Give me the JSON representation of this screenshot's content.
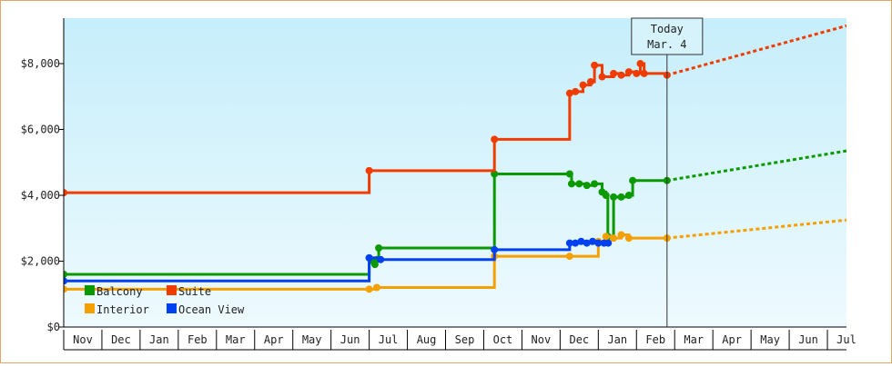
{
  "chart_data": {
    "type": "step-line",
    "xlim": [
      0,
      20.5
    ],
    "xticks": [
      {
        "value": 0.5,
        "label": "Nov"
      },
      {
        "value": 1.5,
        "label": "Dec"
      },
      {
        "value": 2.5,
        "label": "Jan"
      },
      {
        "value": 3.5,
        "label": "Feb"
      },
      {
        "value": 4.5,
        "label": "Mar"
      },
      {
        "value": 5.5,
        "label": "Apr"
      },
      {
        "value": 6.5,
        "label": "May"
      },
      {
        "value": 7.5,
        "label": "Jun"
      },
      {
        "value": 8.5,
        "label": "Jul"
      },
      {
        "value": 9.5,
        "label": "Aug"
      },
      {
        "value": 10.5,
        "label": "Sep"
      },
      {
        "value": 11.5,
        "label": "Oct"
      },
      {
        "value": 12.5,
        "label": "Nov"
      },
      {
        "value": 13.5,
        "label": "Dec"
      },
      {
        "value": 14.5,
        "label": "Jan"
      },
      {
        "value": 15.5,
        "label": "Feb"
      },
      {
        "value": 16.5,
        "label": "Mar"
      },
      {
        "value": 17.5,
        "label": "Apr"
      },
      {
        "value": 18.5,
        "label": "May"
      },
      {
        "value": 19.5,
        "label": "Jun"
      },
      {
        "value": 20.5,
        "label": "Jul"
      }
    ],
    "ylim": [
      0,
      9380
    ],
    "yticks": [
      {
        "value": 0,
        "label": "$0"
      },
      {
        "value": 2000,
        "label": "$2,000"
      },
      {
        "value": 4000,
        "label": "$4,000"
      },
      {
        "value": 6000,
        "label": "$6,000"
      },
      {
        "value": 8000,
        "label": "$8,000"
      }
    ],
    "today": {
      "x": 15.8,
      "label": "Today",
      "date": "Mar. 4"
    },
    "projection_x": [
      15.8,
      20.5
    ],
    "series": [
      {
        "name": "Balcony",
        "color": "#0a9a00",
        "x": [
          0,
          8.0,
          8.1,
          8.15,
          8.2,
          8.25,
          11.28,
          13.25,
          13.3,
          13.5,
          13.7,
          13.9,
          14.1,
          14.2,
          14.25,
          14.4,
          14.6,
          14.8,
          14.9,
          15.8
        ],
        "values": [
          1600,
          2100,
          2000,
          1900,
          2050,
          2400,
          4650,
          4650,
          4350,
          4350,
          4300,
          4350,
          4100,
          4000,
          2750,
          3950,
          3950,
          4000,
          4450,
          4450
        ],
        "projection": [
          4450,
          5350
        ]
      },
      {
        "name": "Suite",
        "color": "#f03c00",
        "x": [
          0,
          8.0,
          11.28,
          13.25,
          13.4,
          13.6,
          13.8,
          13.9,
          14.1,
          14.4,
          14.6,
          14.8,
          15.0,
          15.1,
          15.2,
          15.8
        ],
        "values": [
          4080,
          4750,
          5700,
          7100,
          7150,
          7350,
          7450,
          7950,
          7600,
          7700,
          7650,
          7750,
          7700,
          8000,
          7700,
          7650
        ],
        "projection": [
          7650,
          9150
        ]
      },
      {
        "name": "Interior",
        "color": "#f5a000",
        "x": [
          0,
          8.0,
          8.2,
          11.28,
          13.25,
          14.0,
          14.2,
          14.4,
          14.6,
          14.8,
          15.8
        ],
        "values": [
          1150,
          1150,
          1200,
          2150,
          2150,
          2600,
          2750,
          2700,
          2800,
          2700,
          2700
        ],
        "projection": [
          2700,
          3250
        ]
      },
      {
        "name": "Ocean View",
        "color": "#0040f0",
        "x": [
          0,
          8.0,
          8.3,
          11.28,
          13.25,
          13.4,
          13.55,
          13.7,
          13.85,
          14.0,
          14.15,
          14.26
        ],
        "values": [
          1400,
          2100,
          2050,
          2350,
          2550,
          2550,
          2600,
          2550,
          2600,
          2550,
          2550,
          2550
        ]
      }
    ]
  }
}
